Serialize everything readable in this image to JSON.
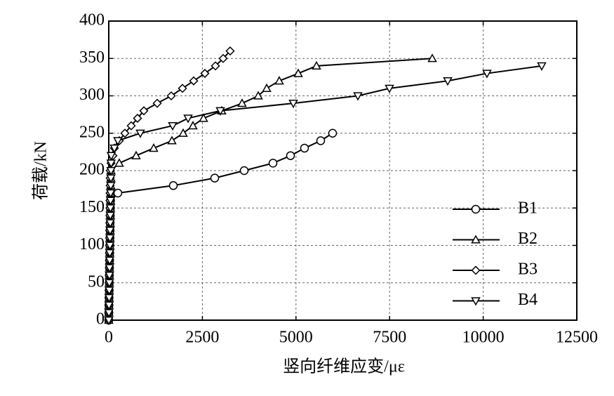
{
  "chart_data": {
    "type": "line",
    "x_label": "竖向纤维应变/με",
    "y_label": "荷载/kN",
    "xlim": [
      0,
      12500
    ],
    "xticks": [
      0,
      2500,
      5000,
      7500,
      10000,
      12500
    ],
    "ylim": [
      0,
      400
    ],
    "yticks": [
      0,
      50,
      100,
      150,
      200,
      250,
      300,
      350,
      400
    ],
    "grid": true,
    "legend": "lower right",
    "series": [
      {
        "name": "B1",
        "color": "#000000",
        "marker": "circle",
        "x": [
          0,
          2,
          5,
          8,
          11,
          14,
          17,
          20,
          23,
          26,
          29,
          32,
          35,
          38,
          41,
          44,
          47,
          243,
          1724,
          2830,
          3617,
          4386,
          4854,
          5228,
          5660,
          5978
        ],
        "values": [
          0,
          10,
          20,
          30,
          40,
          50,
          60,
          70,
          80,
          90,
          100,
          110,
          120,
          130,
          140,
          150,
          160,
          170,
          180,
          190,
          200,
          210,
          220,
          230,
          240,
          250
        ]
      },
      {
        "name": "B2",
        "color": "#000000",
        "marker": "triangle-up",
        "x": [
          0,
          3,
          6,
          9,
          12,
          15,
          18,
          21,
          24,
          27,
          30,
          33,
          36,
          39,
          42,
          45,
          48,
          51,
          54,
          57,
          60,
          281,
          731,
          1199,
          1687,
          1987,
          2249,
          2530,
          3017,
          3560,
          3992,
          4217,
          4554,
          5060,
          5547,
          8640
        ],
        "values": [
          0,
          10,
          20,
          30,
          40,
          50,
          60,
          70,
          80,
          90,
          100,
          110,
          120,
          130,
          140,
          150,
          160,
          170,
          180,
          190,
          200,
          210,
          220,
          230,
          240,
          250,
          260,
          270,
          280,
          290,
          300,
          310,
          320,
          330,
          340,
          350
        ]
      },
      {
        "name": "B3",
        "color": "#000000",
        "marker": "diamond",
        "x": [
          0,
          2,
          4,
          6,
          8,
          10,
          12,
          14,
          16,
          18,
          20,
          22,
          24,
          26,
          28,
          30,
          32,
          34,
          36,
          38,
          40,
          60,
          112,
          150,
          281,
          431,
          600,
          768,
          937,
          1293,
          1668,
          1968,
          2268,
          2567,
          2849,
          3055,
          3242
        ],
        "values": [
          0,
          10,
          20,
          30,
          40,
          50,
          60,
          70,
          80,
          90,
          100,
          110,
          120,
          130,
          140,
          150,
          160,
          170,
          180,
          190,
          200,
          210,
          220,
          230,
          240,
          250,
          260,
          270,
          280,
          290,
          300,
          310,
          320,
          330,
          340,
          350,
          360
        ]
      },
      {
        "name": "B4",
        "color": "#000000",
        "marker": "triangle-down",
        "x": [
          0,
          3,
          6,
          9,
          12,
          15,
          18,
          21,
          24,
          27,
          30,
          33,
          36,
          39,
          42,
          45,
          48,
          51,
          54,
          57,
          60,
          63,
          66,
          150,
          243,
          843,
          1705,
          2118,
          2980,
          4929,
          6653,
          7496,
          9052,
          10101,
          11563
        ],
        "values": [
          0,
          10,
          20,
          30,
          40,
          50,
          60,
          70,
          80,
          90,
          100,
          110,
          120,
          130,
          140,
          150,
          160,
          170,
          180,
          190,
          200,
          210,
          220,
          230,
          240,
          250,
          260,
          270,
          280,
          290,
          300,
          310,
          320,
          330,
          340
        ]
      }
    ]
  }
}
